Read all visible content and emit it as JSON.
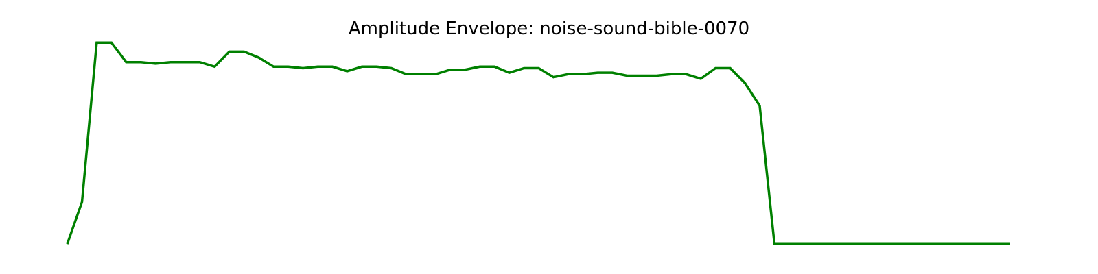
{
  "chart_data": {
    "type": "line",
    "title": "Amplitude Envelope: noise-sound-bible-0070",
    "xlabel": "",
    "ylabel": "",
    "axes_visible": false,
    "grid": false,
    "xlim": [
      0,
      64
    ],
    "ylim": [
      -0.004,
      0.135
    ],
    "series": [
      {
        "color": "#008000",
        "x": [
          0,
          1,
          2,
          3,
          4,
          5,
          6,
          7,
          8,
          9,
          10,
          11,
          12,
          13,
          14,
          15,
          16,
          17,
          18,
          19,
          20,
          21,
          22,
          23,
          24,
          25,
          26,
          27,
          28,
          29,
          30,
          31,
          32,
          33,
          34,
          35,
          36,
          37,
          38,
          39,
          40,
          41,
          42,
          43,
          44,
          45,
          46,
          47,
          48,
          49,
          50,
          51,
          52,
          53,
          54,
          55,
          56,
          57,
          58,
          59,
          60,
          61,
          62,
          63,
          64
        ],
        "values": [
          0.0,
          0.028,
          0.134,
          0.134,
          0.121,
          0.121,
          0.12,
          0.121,
          0.121,
          0.121,
          0.118,
          0.128,
          0.128,
          0.124,
          0.118,
          0.118,
          0.117,
          0.118,
          0.118,
          0.115,
          0.118,
          0.118,
          0.117,
          0.113,
          0.113,
          0.113,
          0.116,
          0.116,
          0.118,
          0.118,
          0.114,
          0.117,
          0.117,
          0.111,
          0.113,
          0.113,
          0.114,
          0.114,
          0.112,
          0.112,
          0.112,
          0.113,
          0.113,
          0.11,
          0.117,
          0.117,
          0.107,
          0.092,
          0.0,
          0.0,
          0.0,
          0.0,
          0.0,
          0.0,
          0.0,
          0.0,
          0.0,
          0.0,
          0.0,
          0.0,
          0.0,
          0.0,
          0.0,
          0.0,
          0.0
        ]
      }
    ]
  }
}
